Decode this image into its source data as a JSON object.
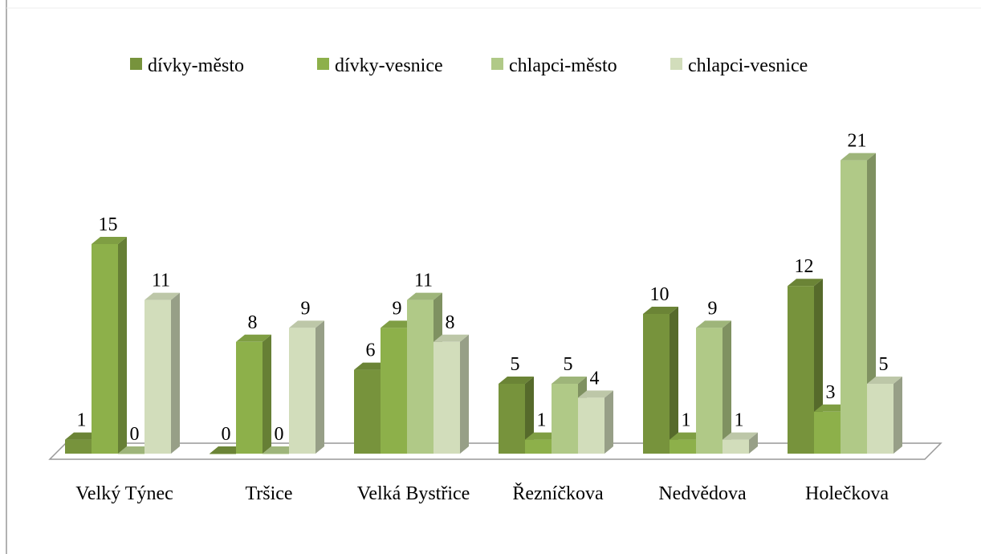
{
  "chart_data": {
    "type": "bar3d",
    "categories": [
      "Velký Týnec",
      "Tršice",
      "Velká Bystřice",
      "Řezníčkova",
      "Nedvědova",
      "Holečkova"
    ],
    "series": [
      {
        "name": "dívky-město",
        "color": "#77933c",
        "values": [
          1,
          0,
          6,
          5,
          10,
          12
        ]
      },
      {
        "name": "dívky-vesnice",
        "color": "#8db04a",
        "values": [
          15,
          8,
          9,
          1,
          1,
          3
        ]
      },
      {
        "name": "chlapci-město",
        "color": "#b0c987",
        "values": [
          0,
          0,
          11,
          5,
          9,
          21
        ]
      },
      {
        "name": "chlapci-vesnice",
        "color": "#d2ddbb",
        "values": [
          11,
          9,
          8,
          4,
          1,
          5
        ]
      }
    ],
    "legend": "top"
  }
}
